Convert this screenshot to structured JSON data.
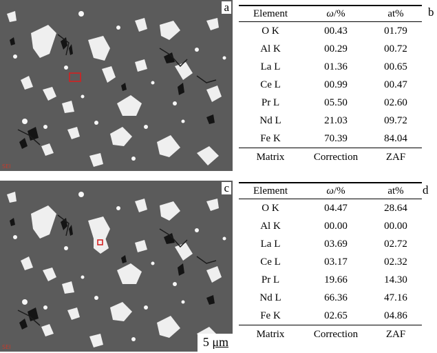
{
  "panels": {
    "a": "a",
    "b": "b",
    "c": "c",
    "d": "d"
  },
  "scale_bar": {
    "value": "5",
    "unit": "μm"
  },
  "table_b": {
    "headers": [
      "Element",
      "ω",
      "/%",
      "at%"
    ],
    "rows": [
      [
        "O K",
        "00.43",
        "01.79"
      ],
      [
        "Al K",
        "00.29",
        "00.72"
      ],
      [
        "La L",
        "01.36",
        "00.65"
      ],
      [
        "Ce L",
        "00.99",
        "00.47"
      ],
      [
        "Pr L",
        "05.50",
        "02.60"
      ],
      [
        "Nd L",
        "21.03",
        "09.72"
      ],
      [
        "Fe K",
        "70.39",
        "84.04"
      ]
    ],
    "footer": [
      "Matrix",
      "Correction",
      "ZAF"
    ]
  },
  "table_d": {
    "headers": [
      "Element",
      "ω",
      "/%",
      "at%"
    ],
    "rows": [
      [
        "O K",
        "04.47",
        "28.64"
      ],
      [
        "Al K",
        "00.00",
        "00.00"
      ],
      [
        "La L",
        "03.69",
        "02.72"
      ],
      [
        "Ce L",
        "03.17",
        "02.32"
      ],
      [
        "Pr L",
        "19.66",
        "14.30"
      ],
      [
        "Nd L",
        "66.36",
        "47.16"
      ],
      [
        "Fe K",
        "02.65",
        "04.86"
      ]
    ],
    "footer": [
      "Matrix",
      "Correction",
      "ZAF"
    ]
  },
  "colors": {
    "matrix_gray": "#5b5b5b",
    "phase_white": "#f2f2f2",
    "pore_black": "#141414",
    "marker_red": "#d42020"
  }
}
